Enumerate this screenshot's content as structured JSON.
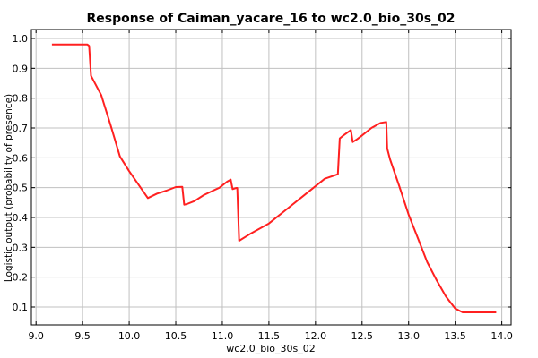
{
  "chart_data": {
    "type": "line",
    "title": "Response of Caiman_yacare_16 to wc2.0_bio_30s_02",
    "xlabel": "wc2.0_bio_30s_02",
    "ylabel": "Logistic output (probability of presence)",
    "xlim": [
      8.95,
      14.1
    ],
    "ylim": [
      0.04,
      1.03
    ],
    "xticks": [
      9.0,
      9.5,
      10.0,
      10.5,
      11.0,
      11.5,
      12.0,
      12.5,
      13.0,
      13.5,
      14.0
    ],
    "xtick_labels": [
      "9.0",
      "9.5",
      "10.0",
      "10.5",
      "11.0",
      "11.5",
      "12.0",
      "12.5",
      "13.0",
      "13.5",
      "14.0"
    ],
    "yticks": [
      0.1,
      0.2,
      0.3,
      0.4,
      0.5,
      0.6,
      0.7,
      0.8,
      0.9,
      1.0
    ],
    "ytick_labels": [
      "0.1",
      "0.2",
      "0.3",
      "0.4",
      "0.5",
      "0.6",
      "0.7",
      "0.8",
      "0.9",
      "1.0"
    ],
    "grid": true,
    "line_color": "#ff2020",
    "series": [
      {
        "x": [
          9.17,
          9.55,
          9.57,
          9.59,
          9.7,
          9.8,
          9.9,
          9.93,
          10.0,
          10.1,
          10.2,
          10.3,
          10.4,
          10.5,
          10.57,
          10.59,
          10.62,
          10.7,
          10.8,
          10.9,
          10.97,
          11.05,
          11.09,
          11.11,
          11.15,
          11.16,
          11.18,
          11.3,
          11.5,
          11.7,
          11.9,
          12.1,
          12.24,
          12.26,
          12.3,
          12.38,
          12.4,
          12.45,
          12.5,
          12.6,
          12.7,
          12.76,
          12.77,
          12.8,
          12.9,
          13.0,
          13.1,
          13.2,
          13.3,
          13.4,
          13.5,
          13.58,
          13.65,
          13.94
        ],
        "y": [
          0.98,
          0.98,
          0.975,
          0.875,
          0.81,
          0.71,
          0.605,
          0.59,
          0.555,
          0.51,
          0.465,
          0.48,
          0.49,
          0.502,
          0.503,
          0.443,
          0.445,
          0.455,
          0.475,
          0.49,
          0.5,
          0.52,
          0.527,
          0.495,
          0.499,
          0.499,
          0.322,
          0.345,
          0.38,
          0.43,
          0.48,
          0.53,
          0.545,
          0.665,
          0.675,
          0.693,
          0.653,
          0.663,
          0.675,
          0.7,
          0.717,
          0.72,
          0.632,
          0.595,
          0.505,
          0.41,
          0.33,
          0.25,
          0.19,
          0.135,
          0.095,
          0.082,
          0.082,
          0.082
        ]
      }
    ]
  }
}
